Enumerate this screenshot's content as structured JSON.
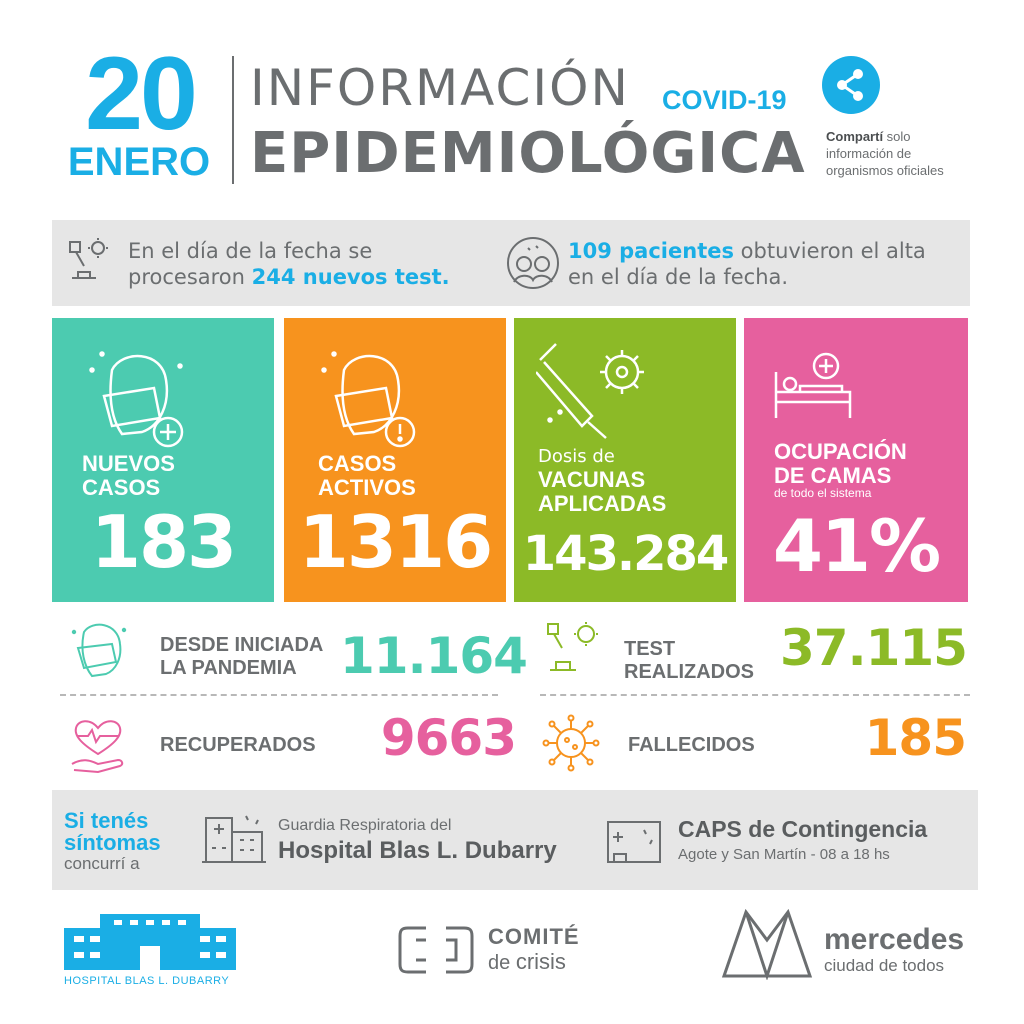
{
  "header": {
    "day": "20",
    "month": "ENERO",
    "title_line1": "INFORMACIÓN",
    "covid_tag": "COVID-19",
    "title_line2": "EPIDEMIOLÓGICA",
    "share_bold": "Compartí",
    "share_rest1": " solo",
    "share_line2": "información de",
    "share_line3": "organismos oficiales"
  },
  "info": {
    "left_line1": "En el día de la fecha se",
    "left_line2_pre": "procesaron ",
    "left_highlight": "244 nuevos test.",
    "right_highlight": "109 pacientes",
    "right_line1_post": " obtuvieron el alta",
    "right_line2": "en el día de la fecha."
  },
  "tiles": {
    "nuevos": {
      "label1": "NUEVOS",
      "label2": "CASOS",
      "value": "183",
      "color": "#4ccbb0"
    },
    "activos": {
      "label1": "CASOS",
      "label2": "ACTIVOS",
      "value": "1316",
      "color": "#f7931e"
    },
    "vacunas": {
      "pre": "Dosis de",
      "label1": "VACUNAS",
      "label2": "APLICADAS",
      "value": "143.284",
      "color": "#8cba27"
    },
    "camas": {
      "label1": "OCUPACIÓN",
      "label2": "DE CAMAS",
      "sub": "de todo el sistema",
      "value": "41%",
      "color": "#e6609e"
    }
  },
  "stats": {
    "pandemia": {
      "label1": "DESDE INICIADA",
      "label2": "LA PANDEMIA",
      "value": "11.164",
      "color": "#4ccbb0"
    },
    "test": {
      "label1": "TEST",
      "label2": "REALIZADOS",
      "value": "37.115",
      "color": "#8cba27"
    },
    "recuperados": {
      "label": "RECUPERADOS",
      "value": "9663",
      "color": "#e6609e"
    },
    "fallecidos": {
      "label": "FALLECIDOS",
      "value": "185",
      "color": "#f7931e"
    }
  },
  "symptoms": {
    "line1": "Si tenés",
    "line2": "síntomas",
    "line3": "concurrí a",
    "hosp_small": "Guardia Respiratoria del",
    "hosp_big": "Hospital Blas L. Dubarry",
    "caps_big": "CAPS de Contingencia",
    "caps_small": "Agote y San Martín - 08 a 18 hs"
  },
  "footer": {
    "hospital_logo_text": "HOSPITAL BLAS L. DUBARRY",
    "comite_line1": "COMITÉ",
    "comite_line2_a": "de ",
    "comite_line2_b": "crisis",
    "mercedes": "mercedes",
    "mercedes_sub": "ciudad de todos"
  },
  "colors": {
    "accent_blue": "#1aaee5",
    "gray_text": "#6b6e70",
    "band_gray": "#e6e6e6"
  }
}
